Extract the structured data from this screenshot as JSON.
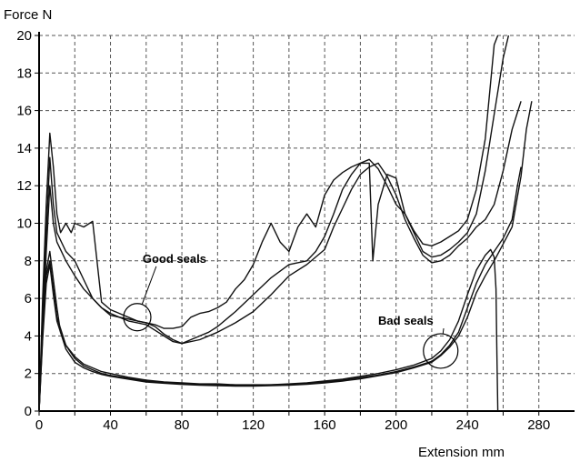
{
  "chart_data": {
    "type": "line",
    "title": "",
    "ylabel": "Force N",
    "xlabel": "Extension mm",
    "xlim": [
      0,
      300
    ],
    "ylim": [
      0,
      20
    ],
    "xticks": [
      "0",
      "40",
      "80",
      "120",
      "160",
      "200",
      "240",
      "280"
    ],
    "yticks": [
      "0",
      "2",
      "4",
      "6",
      "8",
      "10",
      "12",
      "14",
      "16",
      "18",
      "20"
    ],
    "grid": true,
    "grid_x": [
      0,
      20,
      40,
      60,
      80,
      100,
      120,
      140,
      160,
      180,
      200,
      220,
      240,
      260,
      280
    ],
    "grid_y": [
      0,
      2,
      4,
      6,
      8,
      10,
      12,
      14,
      16,
      18,
      20
    ],
    "annotations": [
      {
        "text": "Good seals",
        "circle": [
          55,
          5.0
        ],
        "label_at": [
          58,
          7.9
        ]
      },
      {
        "text": "Bad seals",
        "circle": [
          225,
          3.2
        ],
        "label_at": [
          190,
          4.6
        ]
      }
    ],
    "series": [
      {
        "x": [
          0,
          2,
          4,
          6,
          8,
          10,
          12,
          15,
          18,
          20,
          25,
          30,
          35,
          40,
          45,
          50,
          55,
          60,
          65,
          70,
          75,
          80,
          85,
          90,
          95,
          100,
          105,
          110,
          115,
          120,
          125,
          130,
          135,
          140,
          145,
          150,
          155,
          160,
          165,
          170,
          175,
          180,
          185,
          187,
          190,
          195,
          200,
          205,
          210,
          215,
          220,
          225,
          230,
          235,
          240,
          245,
          250,
          253,
          255,
          257
        ],
        "y": [
          0,
          6.0,
          11.0,
          14.8,
          13.0,
          10.5,
          9.5,
          10.0,
          9.5,
          10.0,
          9.8,
          10.1,
          5.8,
          5.4,
          5.2,
          5.0,
          4.8,
          4.7,
          4.6,
          4.4,
          4.4,
          4.5,
          5.0,
          5.2,
          5.3,
          5.5,
          5.8,
          6.5,
          7.0,
          7.8,
          9.0,
          10.0,
          9.0,
          8.5,
          9.8,
          10.5,
          9.8,
          11.5,
          12.3,
          12.7,
          13.0,
          13.2,
          13.2,
          8.0,
          11.0,
          12.6,
          12.4,
          10.5,
          9.6,
          8.9,
          8.8,
          9.0,
          9.3,
          9.6,
          10.2,
          11.8,
          14.5,
          17.5,
          19.5,
          20.0
        ]
      },
      {
        "x": [
          0,
          2,
          4,
          6,
          8,
          10,
          15,
          20,
          25,
          30,
          35,
          40,
          45,
          50,
          55,
          60,
          65,
          70,
          75,
          80,
          85,
          90,
          95,
          100,
          110,
          120,
          130,
          140,
          150,
          155,
          160,
          165,
          170,
          175,
          180,
          185,
          190,
          195,
          200,
          205,
          210,
          215,
          220,
          225,
          230,
          235,
          240,
          245,
          250,
          255,
          260,
          263
        ],
        "y": [
          0,
          5.0,
          9.5,
          13.5,
          11.0,
          9.5,
          8.5,
          8.0,
          7.0,
          6.0,
          5.5,
          5.1,
          5.0,
          4.9,
          4.8,
          4.7,
          4.5,
          4.1,
          3.8,
          3.6,
          3.8,
          4.0,
          4.2,
          4.5,
          5.3,
          6.2,
          7.1,
          7.8,
          8.0,
          8.5,
          9.3,
          10.5,
          11.8,
          12.6,
          13.2,
          13.4,
          12.9,
          12.0,
          11.0,
          10.5,
          9.5,
          8.5,
          8.2,
          8.3,
          8.6,
          9.0,
          9.5,
          10.5,
          12.8,
          15.8,
          18.8,
          20.0
        ]
      },
      {
        "x": [
          0,
          2,
          4,
          6,
          8,
          10,
          15,
          20,
          25,
          30,
          35,
          40,
          45,
          50,
          55,
          60,
          65,
          70,
          75,
          80,
          90,
          100,
          110,
          120,
          130,
          140,
          150,
          160,
          165,
          170,
          175,
          180,
          185,
          190,
          195,
          200,
          205,
          210,
          215,
          220,
          225,
          230,
          235,
          240,
          245,
          250,
          255,
          260,
          265,
          270
        ],
        "y": [
          0,
          4.5,
          8.5,
          12.0,
          10.0,
          9.0,
          8.0,
          7.2,
          6.5,
          6.0,
          5.5,
          5.2,
          5.0,
          4.8,
          4.7,
          4.6,
          4.3,
          4.0,
          3.7,
          3.6,
          3.8,
          4.2,
          4.7,
          5.3,
          6.2,
          7.2,
          7.8,
          8.6,
          9.8,
          10.8,
          11.8,
          12.6,
          13.0,
          13.2,
          12.5,
          11.5,
          10.2,
          9.2,
          8.3,
          7.9,
          8.0,
          8.3,
          8.8,
          9.2,
          9.8,
          10.2,
          11.0,
          12.8,
          15.0,
          16.5
        ]
      },
      {
        "x": [
          0,
          2,
          4,
          6,
          8,
          10,
          12,
          15,
          20,
          25,
          30,
          35,
          40,
          50,
          60,
          70,
          80,
          90,
          100,
          110,
          120,
          130,
          140,
          150,
          160,
          170,
          180,
          190,
          200,
          210,
          220,
          225,
          230,
          235,
          240,
          245,
          250,
          253,
          255,
          256,
          256.5,
          257
        ],
        "y": [
          0,
          4.5,
          7.5,
          8.5,
          7.0,
          5.5,
          4.2,
          3.5,
          2.9,
          2.5,
          2.3,
          2.1,
          2.0,
          1.8,
          1.65,
          1.55,
          1.5,
          1.45,
          1.45,
          1.4,
          1.4,
          1.4,
          1.45,
          1.5,
          1.6,
          1.7,
          1.85,
          2.0,
          2.2,
          2.45,
          2.8,
          3.2,
          3.8,
          4.8,
          6.2,
          7.5,
          8.3,
          8.6,
          8.2,
          6.5,
          3.0,
          0
        ]
      },
      {
        "x": [
          0,
          2,
          4,
          6,
          8,
          10,
          15,
          20,
          25,
          30,
          35,
          40,
          50,
          60,
          70,
          80,
          90,
          100,
          110,
          120,
          130,
          140,
          150,
          160,
          170,
          180,
          190,
          200,
          210,
          220,
          225,
          230,
          235,
          240,
          245,
          250,
          255,
          260,
          265,
          268,
          270
        ],
        "y": [
          0,
          4.0,
          7.2,
          8.0,
          6.5,
          5.0,
          3.5,
          2.8,
          2.4,
          2.2,
          2.0,
          1.9,
          1.75,
          1.6,
          1.5,
          1.45,
          1.4,
          1.4,
          1.38,
          1.38,
          1.4,
          1.42,
          1.48,
          1.55,
          1.65,
          1.78,
          1.92,
          2.1,
          2.35,
          2.65,
          3.0,
          3.5,
          4.2,
          5.5,
          6.8,
          7.8,
          8.5,
          9.2,
          10.2,
          12.0,
          13.0
        ]
      },
      {
        "x": [
          0,
          2,
          4,
          6,
          8,
          10,
          15,
          20,
          25,
          30,
          35,
          40,
          50,
          60,
          70,
          80,
          90,
          100,
          110,
          120,
          130,
          140,
          150,
          160,
          170,
          180,
          190,
          200,
          210,
          220,
          225,
          230,
          235,
          240,
          245,
          250,
          255,
          260,
          265,
          270,
          273,
          276
        ],
        "y": [
          0,
          3.8,
          6.8,
          7.8,
          6.2,
          4.8,
          3.3,
          2.6,
          2.3,
          2.1,
          1.95,
          1.85,
          1.7,
          1.55,
          1.48,
          1.42,
          1.38,
          1.35,
          1.33,
          1.33,
          1.35,
          1.38,
          1.43,
          1.5,
          1.6,
          1.72,
          1.88,
          2.05,
          2.3,
          2.6,
          2.95,
          3.4,
          4.0,
          5.0,
          6.3,
          7.2,
          8.0,
          8.9,
          9.8,
          12.5,
          15.0,
          16.5
        ]
      }
    ]
  }
}
